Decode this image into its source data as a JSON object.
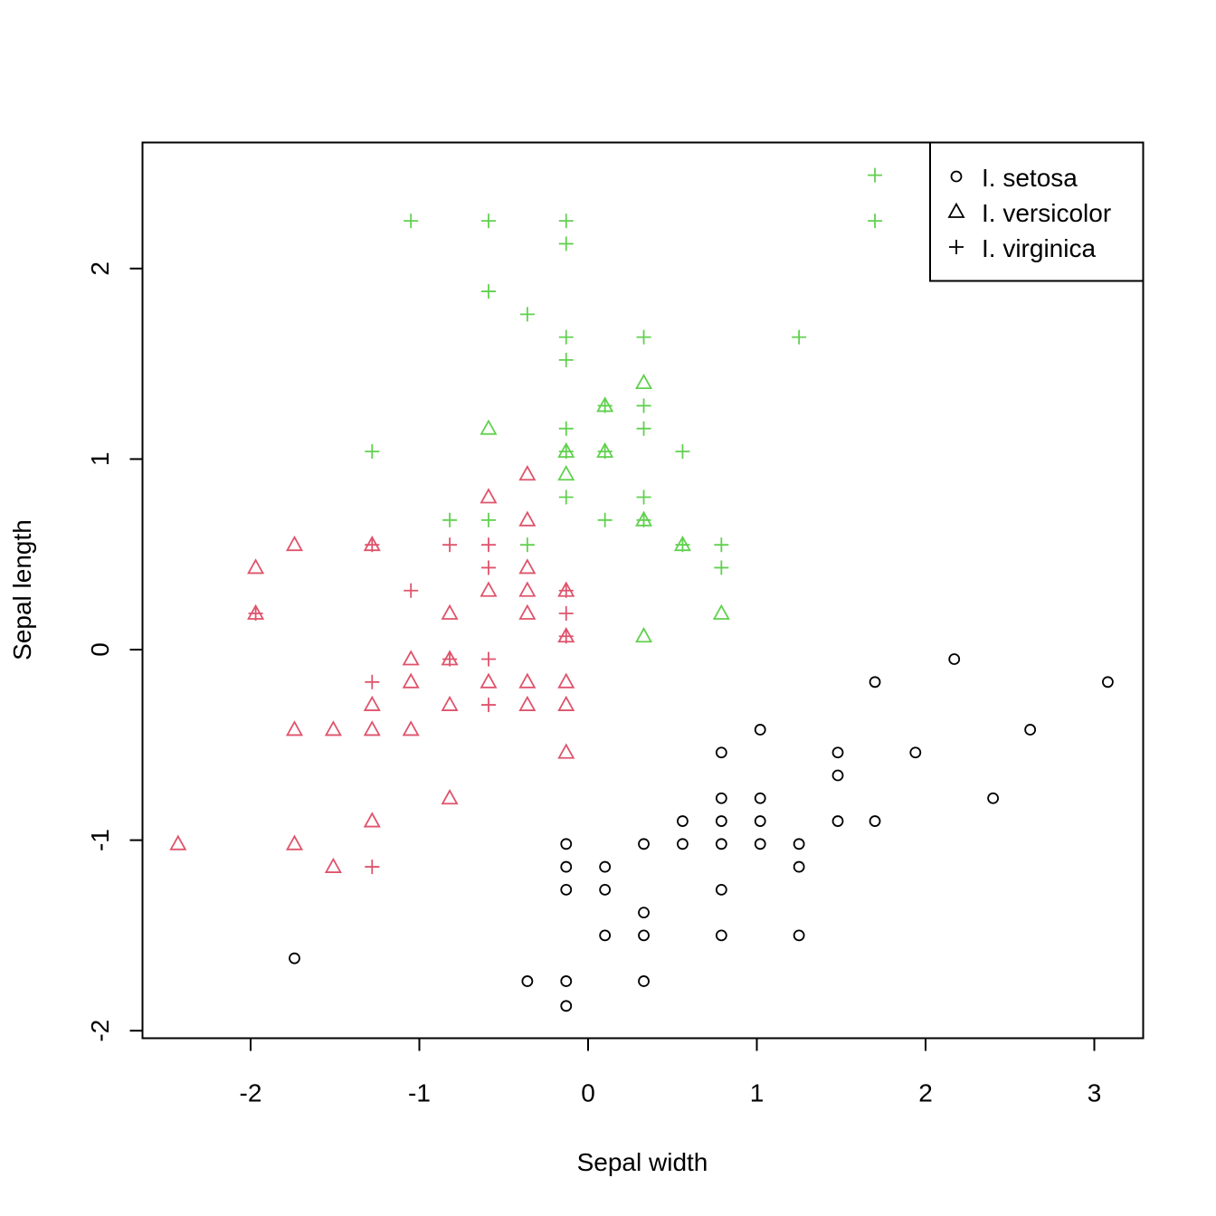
{
  "chart_data": {
    "type": "scatter",
    "title": "",
    "xlabel": "Sepal width",
    "ylabel": "Sepal length",
    "xlim": [
      -2.55,
      3.3
    ],
    "ylim": [
      -2.05,
      2.65
    ],
    "xticks": [
      -2,
      -1,
      0,
      1,
      2,
      3
    ],
    "yticks": [
      -2,
      -1,
      0,
      1,
      2
    ],
    "grid": false,
    "legend_position": "top-right",
    "legend": [
      {
        "label": "I. setosa",
        "shape": "circle"
      },
      {
        "label": "I. versicolor",
        "shape": "triangle"
      },
      {
        "label": "I. virginica",
        "shape": "plus"
      }
    ],
    "series": [
      {
        "name": "I. setosa",
        "shape": "circle",
        "color": "#000000",
        "points": [
          [
            1.7,
            -0.17
          ],
          [
            2.17,
            -0.05
          ],
          [
            3.08,
            -0.17
          ],
          [
            2.62,
            -0.42
          ],
          [
            1.02,
            -0.42
          ],
          [
            0.79,
            -0.54
          ],
          [
            1.48,
            -0.54
          ],
          [
            1.94,
            -0.54
          ],
          [
            1.48,
            -0.66
          ],
          [
            0.79,
            -0.78
          ],
          [
            1.02,
            -0.78
          ],
          [
            2.4,
            -0.78
          ],
          [
            0.56,
            -0.9
          ],
          [
            0.79,
            -0.9
          ],
          [
            1.02,
            -0.9
          ],
          [
            1.48,
            -0.9
          ],
          [
            1.7,
            -0.9
          ],
          [
            -0.13,
            -1.02
          ],
          [
            0.33,
            -1.02
          ],
          [
            0.56,
            -1.02
          ],
          [
            0.79,
            -1.02
          ],
          [
            1.02,
            -1.02
          ],
          [
            1.25,
            -1.02
          ],
          [
            -0.13,
            -1.14
          ],
          [
            0.1,
            -1.14
          ],
          [
            1.25,
            -1.14
          ],
          [
            -0.13,
            -1.26
          ],
          [
            0.1,
            -1.26
          ],
          [
            0.79,
            -1.26
          ],
          [
            0.33,
            -1.38
          ],
          [
            0.1,
            -1.5
          ],
          [
            0.33,
            -1.5
          ],
          [
            0.79,
            -1.5
          ],
          [
            1.25,
            -1.5
          ],
          [
            -1.74,
            -1.62
          ],
          [
            -0.36,
            -1.74
          ],
          [
            -0.13,
            -1.74
          ],
          [
            0.33,
            -1.74
          ],
          [
            -0.13,
            -1.87
          ]
        ]
      },
      {
        "name": "I. versicolor",
        "shape": "triangle",
        "color": "#DF536B",
        "points": [
          [
            -0.36,
            0.92
          ],
          [
            -0.59,
            0.8
          ],
          [
            -0.36,
            0.68
          ],
          [
            -1.74,
            0.55
          ],
          [
            -1.28,
            0.55
          ],
          [
            -1.97,
            0.43
          ],
          [
            -0.36,
            0.43
          ],
          [
            -0.59,
            0.31
          ],
          [
            -0.36,
            0.31
          ],
          [
            -0.13,
            0.31
          ],
          [
            -1.97,
            0.19
          ],
          [
            -0.82,
            0.19
          ],
          [
            -0.36,
            0.19
          ],
          [
            -0.13,
            0.07
          ],
          [
            -1.05,
            -0.05
          ],
          [
            -0.82,
            -0.05
          ],
          [
            -1.05,
            -0.17
          ],
          [
            -0.59,
            -0.17
          ],
          [
            -0.36,
            -0.17
          ],
          [
            -0.13,
            -0.17
          ],
          [
            -1.28,
            -0.29
          ],
          [
            -0.82,
            -0.29
          ],
          [
            -0.36,
            -0.29
          ],
          [
            -0.13,
            -0.29
          ],
          [
            -1.74,
            -0.42
          ],
          [
            -1.51,
            -0.42
          ],
          [
            -1.28,
            -0.42
          ],
          [
            -1.05,
            -0.42
          ],
          [
            -0.13,
            -0.54
          ],
          [
            -0.82,
            -0.78
          ],
          [
            -1.28,
            -0.9
          ],
          [
            -2.43,
            -1.02
          ],
          [
            -1.74,
            -1.02
          ],
          [
            -1.51,
            -1.14
          ]
        ]
      },
      {
        "name": "I. versicolor",
        "shape": "triangle",
        "color": "#61D04F",
        "points": [
          [
            0.33,
            1.4
          ],
          [
            0.1,
            1.28
          ],
          [
            -0.59,
            1.16
          ],
          [
            -0.13,
            1.04
          ],
          [
            0.1,
            1.04
          ],
          [
            -0.13,
            0.92
          ],
          [
            0.33,
            0.68
          ],
          [
            0.56,
            0.55
          ],
          [
            0.79,
            0.19
          ],
          [
            0.33,
            0.07
          ]
        ]
      },
      {
        "name": "I. virginica",
        "shape": "plus",
        "color": "#DF536B",
        "points": [
          [
            -1.28,
            0.55
          ],
          [
            -0.82,
            0.55
          ],
          [
            -0.59,
            0.55
          ],
          [
            -0.59,
            0.43
          ],
          [
            -1.05,
            0.31
          ],
          [
            -0.13,
            0.31
          ],
          [
            -1.97,
            0.19
          ],
          [
            -0.13,
            0.19
          ],
          [
            -0.13,
            0.07
          ],
          [
            -0.82,
            -0.05
          ],
          [
            -0.59,
            -0.05
          ],
          [
            -1.28,
            -0.17
          ],
          [
            -0.59,
            -0.29
          ],
          [
            -1.28,
            -1.14
          ]
        ]
      },
      {
        "name": "I. virginica",
        "shape": "plus",
        "color": "#61D04F",
        "points": [
          [
            1.7,
            2.49
          ],
          [
            -1.05,
            2.25
          ],
          [
            -0.59,
            2.25
          ],
          [
            -0.13,
            2.25
          ],
          [
            1.7,
            2.25
          ],
          [
            -0.13,
            2.13
          ],
          [
            -0.59,
            1.88
          ],
          [
            -0.36,
            1.76
          ],
          [
            -0.13,
            1.64
          ],
          [
            0.33,
            1.64
          ],
          [
            1.25,
            1.64
          ],
          [
            -0.13,
            1.52
          ],
          [
            0.1,
            1.28
          ],
          [
            0.33,
            1.28
          ],
          [
            -0.13,
            1.16
          ],
          [
            0.33,
            1.16
          ],
          [
            -1.28,
            1.04
          ],
          [
            -0.13,
            1.04
          ],
          [
            0.1,
            1.04
          ],
          [
            0.56,
            1.04
          ],
          [
            -0.13,
            0.8
          ],
          [
            0.33,
            0.8
          ],
          [
            -0.82,
            0.68
          ],
          [
            -0.59,
            0.68
          ],
          [
            0.1,
            0.68
          ],
          [
            0.33,
            0.68
          ],
          [
            -0.36,
            0.55
          ],
          [
            0.56,
            0.55
          ],
          [
            0.79,
            0.55
          ],
          [
            0.79,
            0.43
          ]
        ]
      }
    ]
  }
}
